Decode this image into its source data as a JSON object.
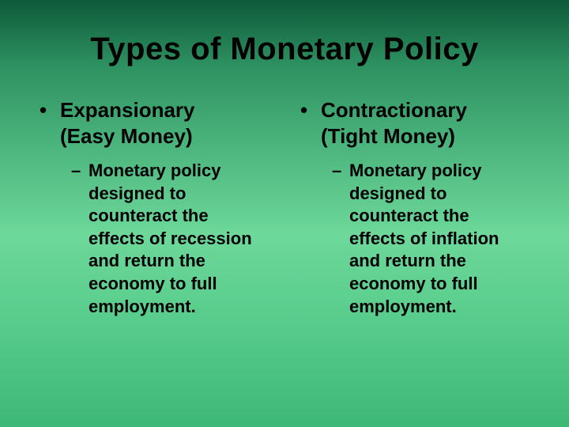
{
  "background": {
    "gradient_stops": [
      "#0d5a3a",
      "#2d9060",
      "#4db67e",
      "#6dd89a",
      "#58cc8c",
      "#3eb877"
    ]
  },
  "title": "Types of Monetary Policy",
  "title_fontsize": 40,
  "heading_fontsize": 26,
  "sub_fontsize": 22,
  "text_color": "#000000",
  "bullet_char": "•",
  "dash_char": "–",
  "columns": [
    {
      "heading_line1": "Expansionary",
      "heading_line2": "(Easy Money)",
      "sub": "Monetary policy designed to counteract the effects of recession and return the economy to full employment."
    },
    {
      "heading_line1": "Contractionary",
      "heading_line2": "(Tight Money)",
      "sub": "Monetary policy designed to counteract the effects of inflation and return the economy to full employment."
    }
  ]
}
